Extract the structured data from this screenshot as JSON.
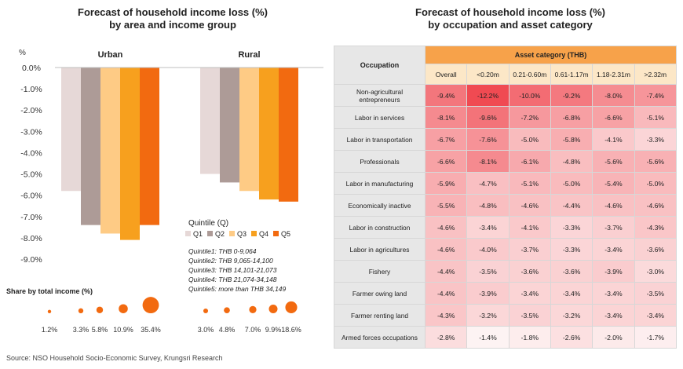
{
  "left": {
    "title_line1": "Forecast of household income loss (%)",
    "title_line2": "by area and income group",
    "y_unit": "%",
    "legend_title": "Quintile (Q)",
    "notes": [
      "Quintile1: THB 0-9,064",
      "Quintile2: THB 9,065-14,100",
      "Quintile3: THB 14,101-21,073",
      "Quintile4: THB 21,074-34,148",
      "Quintile5: more than THB 34,149"
    ],
    "share_title": "Share by total income (%)"
  },
  "chart_data": [
    {
      "type": "bar",
      "title": "Forecast of household income loss (%) by area and income group",
      "ylabel": "%",
      "ylim": [
        -9.0,
        0.0
      ],
      "yticks": [
        "0.0%",
        "-1.0%",
        "-2.0%",
        "-3.0%",
        "-4.0%",
        "-5.0%",
        "-6.0%",
        "-7.0%",
        "-8.0%",
        "-9.0%"
      ],
      "categories": [
        "Urban",
        "Rural"
      ],
      "series": [
        {
          "name": "Q1",
          "color": "#e6d8d7",
          "values": [
            -5.8,
            -5.0
          ]
        },
        {
          "name": "Q2",
          "color": "#ad9b97",
          "values": [
            -7.4,
            -5.4
          ]
        },
        {
          "name": "Q3",
          "color": "#fecb85",
          "values": [
            -7.8,
            -5.8
          ]
        },
        {
          "name": "Q4",
          "color": "#f7a01e",
          "values": [
            -8.1,
            -6.2
          ]
        },
        {
          "name": "Q5",
          "color": "#f26a10",
          "values": [
            -7.4,
            -6.3
          ]
        }
      ],
      "legend_placement": "bottom-right",
      "grid": false
    },
    {
      "type": "scatter",
      "title": "Share by total income (%)",
      "groups": [
        {
          "name": "Urban",
          "values": [
            1.2,
            3.3,
            5.8,
            10.9,
            35.4
          ],
          "labels": [
            "1.2%",
            "3.3%",
            "5.8%",
            "10.9%",
            "35.4%"
          ]
        },
        {
          "name": "Rural",
          "values": [
            3.0,
            4.8,
            7.0,
            9.9,
            18.6
          ],
          "labels": [
            "3.0%",
            "4.8%",
            "7.0%",
            "9.9%",
            "18.6%"
          ]
        }
      ],
      "color": "#f26a10"
    },
    {
      "type": "heatmap",
      "title": "Forecast of household income loss (%) by occupation and asset category",
      "row_header": "Occupation",
      "col_group_header": "Asset category (THB)",
      "columns": [
        "Overall",
        "<0.20m",
        "0.21-0.60m",
        "0.61-1.17m",
        "1.18-2.31m",
        ">2.32m"
      ],
      "rows": [
        {
          "label": "Non-agricultural entrepreneurs",
          "values": [
            -9.4,
            -12.2,
            -10.0,
            -9.2,
            -8.0,
            -7.4
          ]
        },
        {
          "label": "Labor in services",
          "values": [
            -8.1,
            -9.6,
            -7.2,
            -6.8,
            -6.6,
            -5.1
          ]
        },
        {
          "label": "Labor in transportation",
          "values": [
            -6.7,
            -7.6,
            -5.0,
            -5.8,
            -4.1,
            -3.3
          ]
        },
        {
          "label": "Professionals",
          "values": [
            -6.6,
            -8.1,
            -6.1,
            -4.8,
            -5.6,
            -5.6
          ]
        },
        {
          "label": "Labor in manufacturing",
          "values": [
            -5.9,
            -4.7,
            -5.1,
            -5.0,
            -5.4,
            -5.0
          ]
        },
        {
          "label": "Economically inactive",
          "values": [
            -5.5,
            -4.8,
            -4.6,
            -4.4,
            -4.6,
            -4.6
          ]
        },
        {
          "label": "Labor in construction",
          "values": [
            -4.6,
            -3.4,
            -4.1,
            -3.3,
            -3.7,
            -4.3
          ]
        },
        {
          "label": "Labor in agricultures",
          "values": [
            -4.6,
            -4.0,
            -3.7,
            -3.3,
            -3.4,
            -3.6
          ]
        },
        {
          "label": "Fishery",
          "values": [
            -4.4,
            -3.5,
            -3.6,
            -3.6,
            -3.9,
            -3.0
          ]
        },
        {
          "label": "Farmer owing land",
          "values": [
            -4.4,
            -3.9,
            -3.4,
            -3.4,
            -3.4,
            -3.5
          ]
        },
        {
          "label": "Farmer renting land",
          "values": [
            -4.3,
            -3.2,
            -3.5,
            -3.2,
            -3.4,
            -3.4
          ]
        },
        {
          "label": "Armed forces occupations",
          "values": [
            -2.8,
            -1.4,
            -1.8,
            -2.6,
            -2.0,
            -1.7
          ]
        }
      ],
      "color_low": "#fdf3f3",
      "color_high": "#f04a52"
    }
  ],
  "right": {
    "title_line1": "Forecast of household income loss (%)",
    "title_line2": "by occupation and asset category"
  },
  "source": "Source: NSO Household Socio-Economic Survey, Krungsri Research"
}
